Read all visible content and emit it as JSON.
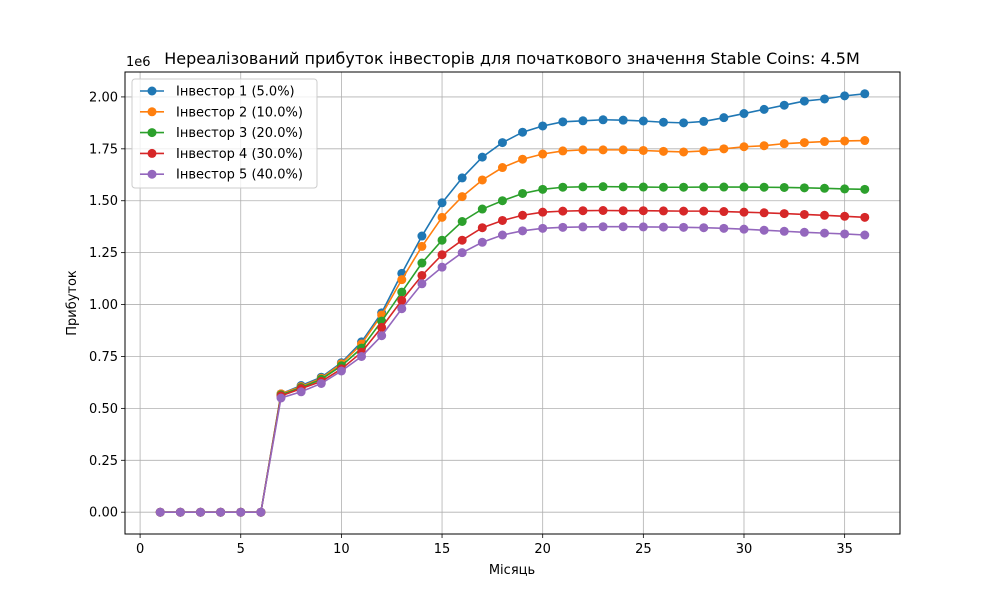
{
  "chart_data": {
    "type": "line",
    "title": "Нереалізований прибуток інвесторів для початкового значення Stable Coins: 4.5M",
    "xlabel": "Місяць",
    "ylabel": "Прибуток",
    "y_offset_text": "1e6",
    "xlim": [
      -0.75,
      37.75
    ],
    "ylim": [
      -0.105,
      2.12
    ],
    "x_ticks": [
      0,
      5,
      10,
      15,
      20,
      25,
      30,
      35
    ],
    "y_ticks": [
      0.0,
      0.25,
      0.5,
      0.75,
      1.0,
      1.25,
      1.5,
      1.75,
      2.0
    ],
    "y_tick_labels": [
      "0.00",
      "0.25",
      "0.50",
      "0.75",
      "1.00",
      "1.25",
      "1.50",
      "1.75",
      "2.00"
    ],
    "grid": true,
    "legend_position": "top-left",
    "x": [
      1,
      2,
      3,
      4,
      5,
      6,
      7,
      8,
      9,
      10,
      11,
      12,
      13,
      14,
      15,
      16,
      17,
      18,
      19,
      20,
      21,
      22,
      23,
      24,
      25,
      26,
      27,
      28,
      29,
      30,
      31,
      32,
      33,
      34,
      35,
      36
    ],
    "series": [
      {
        "name": "Інвестор 1 (5.0%)",
        "color": "#1f77b4",
        "values": [
          0,
          0,
          0,
          0,
          0,
          0,
          0.57,
          0.61,
          0.65,
          0.72,
          0.82,
          0.96,
          1.15,
          1.33,
          1.49,
          1.61,
          1.71,
          1.78,
          1.83,
          1.86,
          1.88,
          1.885,
          1.89,
          1.888,
          1.884,
          1.878,
          1.875,
          1.882,
          1.9,
          1.92,
          1.94,
          1.96,
          1.98,
          1.99,
          2.005,
          2.015
        ]
      },
      {
        "name": "Інвестор 2 (10.0%)",
        "color": "#ff7f0e",
        "values": [
          0,
          0,
          0,
          0,
          0,
          0,
          0.57,
          0.605,
          0.645,
          0.715,
          0.81,
          0.95,
          1.12,
          1.28,
          1.42,
          1.52,
          1.6,
          1.66,
          1.7,
          1.725,
          1.74,
          1.745,
          1.745,
          1.745,
          1.742,
          1.738,
          1.735,
          1.74,
          1.75,
          1.76,
          1.765,
          1.775,
          1.78,
          1.785,
          1.788,
          1.79
        ]
      },
      {
        "name": "Інвестор 3 (20.0%)",
        "color": "#2ca02c",
        "values": [
          0,
          0,
          0,
          0,
          0,
          0,
          0.565,
          0.6,
          0.64,
          0.705,
          0.79,
          0.92,
          1.06,
          1.2,
          1.31,
          1.4,
          1.46,
          1.5,
          1.535,
          1.555,
          1.565,
          1.567,
          1.568,
          1.567,
          1.566,
          1.565,
          1.565,
          1.566,
          1.566,
          1.566,
          1.565,
          1.564,
          1.562,
          1.56,
          1.557,
          1.555
        ]
      },
      {
        "name": "Інвестор 4 (30.0%)",
        "color": "#d62728",
        "values": [
          0,
          0,
          0,
          0,
          0,
          0,
          0.56,
          0.595,
          0.63,
          0.69,
          0.77,
          0.89,
          1.02,
          1.14,
          1.24,
          1.31,
          1.37,
          1.405,
          1.43,
          1.445,
          1.45,
          1.452,
          1.453,
          1.452,
          1.452,
          1.451,
          1.45,
          1.45,
          1.448,
          1.445,
          1.442,
          1.438,
          1.434,
          1.43,
          1.425,
          1.42
        ]
      },
      {
        "name": "Інвестор 5 (40.0%)",
        "color": "#9467bd",
        "values": [
          0,
          0,
          0,
          0,
          0,
          0,
          0.55,
          0.58,
          0.62,
          0.68,
          0.75,
          0.85,
          0.98,
          1.1,
          1.18,
          1.25,
          1.3,
          1.335,
          1.355,
          1.367,
          1.372,
          1.374,
          1.375,
          1.375,
          1.374,
          1.373,
          1.372,
          1.37,
          1.367,
          1.363,
          1.358,
          1.353,
          1.348,
          1.344,
          1.34,
          1.335
        ]
      }
    ]
  }
}
